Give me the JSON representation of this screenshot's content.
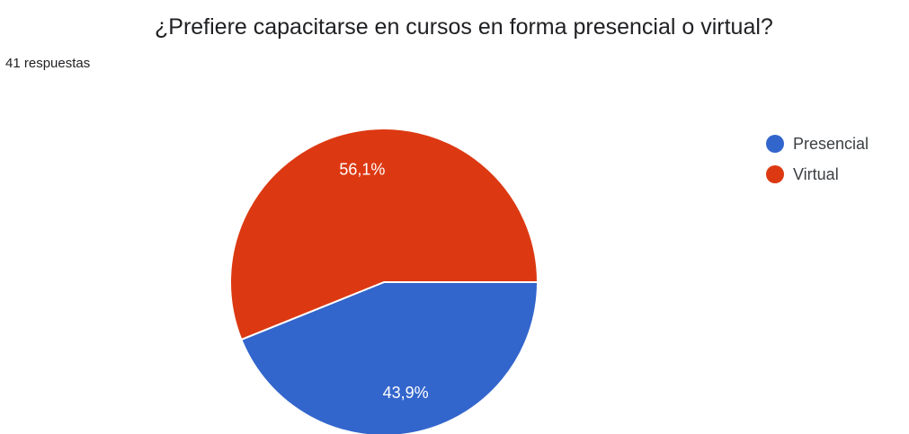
{
  "title": "¿Prefiere capacitarse en cursos en forma presencial o virtual?",
  "response_count": "41 respuestas",
  "chart_data": {
    "type": "pie",
    "title": "¿Prefiere capacitarse en cursos en forma presencial o virtual?",
    "subtitle": "41 respuestas",
    "legend_position": "right",
    "slices": [
      {
        "label": "Presencial",
        "value": 43.9,
        "value_label": "43,9%",
        "color": "#3366cc"
      },
      {
        "label": "Virtual",
        "value": 56.1,
        "value_label": "56,1%",
        "color": "#dc3912"
      }
    ]
  }
}
